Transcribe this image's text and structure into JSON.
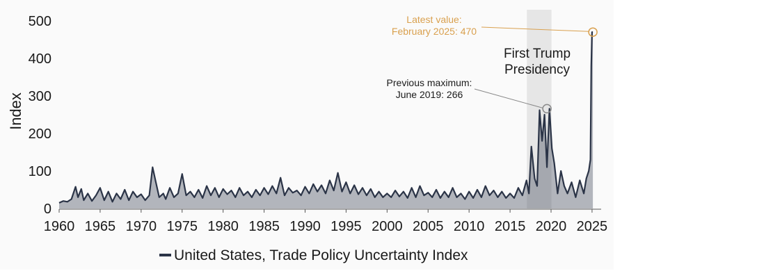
{
  "chart_data": {
    "type": "line",
    "ylabel": "Index",
    "xlim": [
      1960,
      2025.6
    ],
    "ylim": [
      0,
      500
    ],
    "x_ticks": [
      "1960",
      "1965",
      "1970",
      "1975",
      "1980",
      "1985",
      "1990",
      "1995",
      "2000",
      "2005",
      "2010",
      "2015",
      "2020",
      "2025"
    ],
    "y_ticks": [
      "0",
      "100",
      "200",
      "300",
      "400",
      "500"
    ],
    "grid": false,
    "legend_position": "bottom",
    "line_color": "#2b3447",
    "accent_color": "#d9a04e",
    "shade_color": "#e6e6e6",
    "series": [
      {
        "name": "United States, Trade Policy Uncertainty Index",
        "x": [
          1960,
          1960.5,
          1961,
          1961.5,
          1962,
          1962.3,
          1962.7,
          1963,
          1963.5,
          1964,
          1964.5,
          1965,
          1965.5,
          1966,
          1966.5,
          1967,
          1967.5,
          1968,
          1968.5,
          1969,
          1969.5,
          1970,
          1970.5,
          1971,
          1971.4,
          1971.8,
          1972.2,
          1972.7,
          1973,
          1973.5,
          1974,
          1974.5,
          1975,
          1975.5,
          1976,
          1976.5,
          1977,
          1977.5,
          1978,
          1978.5,
          1979,
          1979.5,
          1980,
          1980.5,
          1981,
          1981.5,
          1982,
          1982.5,
          1983,
          1983.5,
          1984,
          1984.5,
          1985,
          1985.5,
          1986,
          1986.5,
          1987,
          1987.5,
          1988,
          1988.5,
          1989,
          1989.5,
          1990,
          1990.5,
          1991,
          1991.5,
          1992,
          1992.5,
          1993,
          1993.5,
          1994,
          1994.5,
          1995,
          1995.5,
          1996,
          1996.5,
          1997,
          1997.5,
          1998,
          1998.5,
          1999,
          1999.5,
          2000,
          2000.5,
          2001,
          2001.5,
          2002,
          2002.5,
          2003,
          2003.5,
          2004,
          2004.5,
          2005,
          2005.5,
          2006,
          2006.5,
          2007,
          2007.5,
          2008,
          2008.5,
          2009,
          2009.5,
          2010,
          2010.5,
          2011,
          2011.5,
          2012,
          2012.5,
          2013,
          2013.5,
          2014,
          2014.5,
          2015,
          2015.5,
          2016,
          2016.5,
          2017,
          2017.3,
          2017.6,
          2018,
          2018.3,
          2018.6,
          2018.9,
          2019.2,
          2019.5,
          2019.8,
          2020.1,
          2020.4,
          2020.8,
          2021.2,
          2021.6,
          2022,
          2022.5,
          2023,
          2023.5,
          2024,
          2024.3,
          2024.6,
          2024.8,
          2024.9,
          2025,
          2025.1
        ],
        "values": [
          15,
          20,
          18,
          25,
          58,
          30,
          52,
          22,
          40,
          20,
          35,
          55,
          22,
          45,
          18,
          40,
          25,
          50,
          22,
          45,
          30,
          38,
          22,
          35,
          110,
          70,
          30,
          40,
          25,
          55,
          30,
          40,
          92,
          35,
          45,
          30,
          50,
          28,
          60,
          35,
          55,
          30,
          52,
          38,
          48,
          30,
          55,
          35,
          45,
          30,
          50,
          35,
          55,
          38,
          60,
          40,
          82,
          35,
          55,
          42,
          48,
          35,
          58,
          40,
          65,
          45,
          62,
          40,
          75,
          48,
          95,
          45,
          70,
          40,
          62,
          38,
          55,
          35,
          52,
          30,
          45,
          30,
          40,
          30,
          48,
          32,
          45,
          28,
          55,
          30,
          60,
          35,
          42,
          30,
          50,
          28,
          45,
          30,
          55,
          30,
          40,
          25,
          45,
          28,
          50,
          30,
          60,
          35,
          48,
          30,
          45,
          28,
          40,
          28,
          55,
          35,
          75,
          40,
          165,
          80,
          60,
          262,
          180,
          250,
          110,
          266,
          160,
          120,
          40,
          100,
          60,
          40,
          70,
          30,
          75,
          40,
          80,
          100,
          130,
          380,
          470,
          470
        ]
      }
    ],
    "shaded_region": {
      "x_start": 2017.05,
      "x_end": 2020.05,
      "label": "First Trump\nPresidency"
    },
    "annotations": [
      {
        "text": "Latest value:\nFebruary 2025: 470",
        "x": 2025.1,
        "y": 470,
        "color": "#d9a04e"
      },
      {
        "text": "Previous maximum:\nJune 2019: 266",
        "x": 2019.5,
        "y": 266,
        "color": "#1a1a1a"
      }
    ]
  }
}
